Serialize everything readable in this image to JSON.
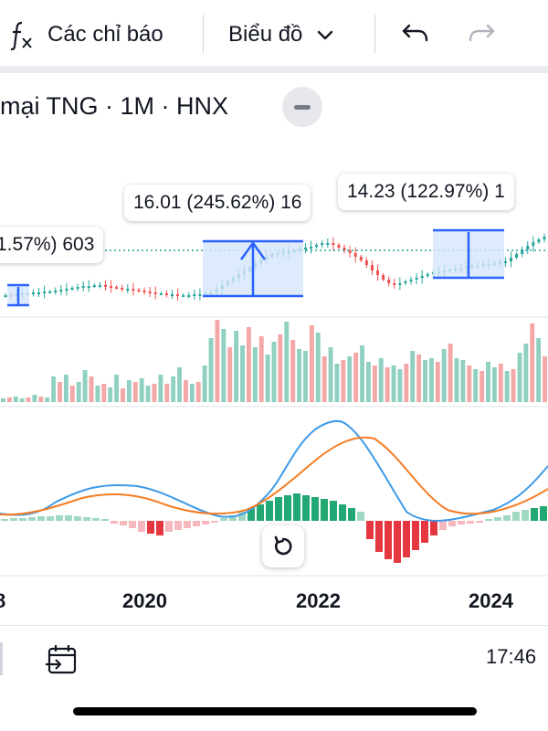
{
  "toolbar": {
    "indicators_label": "Các chỉ báo",
    "chart_type_label": "Biểu đồ",
    "icons": {
      "indicators": "function-fx-icon",
      "dropdown": "chevron-down-icon",
      "undo": "undo-icon",
      "redo": "redo-icon"
    }
  },
  "symbol": {
    "title": "mại TNG · 1M · HNX"
  },
  "measurements": {
    "left": "1.57%) 603",
    "middle": "16.01 (245.62%) 16",
    "right": "14.23 (122.97%) 1"
  },
  "x_axis": {
    "labels": [
      "8",
      "2020",
      "2022",
      "2024"
    ]
  },
  "status": {
    "time": "17:46"
  },
  "colors": {
    "up": "#26a69a",
    "down": "#ef5350",
    "range_fill": "#d6e6fb",
    "range_line": "#2962ff",
    "macd": "#3d9ae8",
    "signal": "#f57c23"
  }
}
